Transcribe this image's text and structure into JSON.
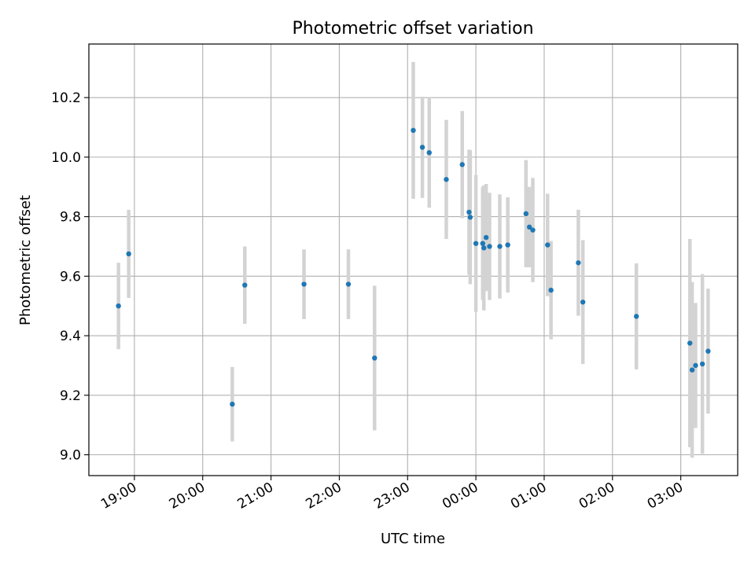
{
  "chart_data": {
    "type": "scatter",
    "title": "Photometric offset variation",
    "xlabel": "UTC time",
    "ylabel": "Photometric offset",
    "x_tick_labels": [
      "19:00",
      "20:00",
      "21:00",
      "22:00",
      "23:00",
      "00:00",
      "01:00",
      "02:00",
      "03:00"
    ],
    "x_tick_times": [
      "19:00",
      "20:00",
      "21:00",
      "22:00",
      "23:00",
      "00:00",
      "01:00",
      "02:00",
      "03:00"
    ],
    "xlim": [
      "18:20",
      "03:50"
    ],
    "y_tick_labels": [
      "9.0",
      "9.2",
      "9.4",
      "9.6",
      "9.8",
      "10.0",
      "10.2"
    ],
    "y_ticks": [
      9.0,
      9.2,
      9.4,
      9.6,
      9.8,
      10.0,
      10.2
    ],
    "ylim": [
      8.93,
      10.38
    ],
    "grid": true,
    "colors": {
      "point": "#1f77b4",
      "errorbar": "#d3d3d3",
      "grid": "#b0b0b0"
    },
    "points": [
      {
        "t": "18:46",
        "y": 9.5,
        "err": 0.145
      },
      {
        "t": "18:55",
        "y": 9.675,
        "err": 0.148
      },
      {
        "t": "20:26",
        "y": 9.17,
        "err": 0.125
      },
      {
        "t": "20:37",
        "y": 9.57,
        "err": 0.13
      },
      {
        "t": "21:29",
        "y": 9.573,
        "err": 0.117
      },
      {
        "t": "22:08",
        "y": 9.573,
        "err": 0.117
      },
      {
        "t": "22:31",
        "y": 9.325,
        "err": 0.243
      },
      {
        "t": "23:05",
        "y": 10.09,
        "err": 0.23
      },
      {
        "t": "23:13",
        "y": 10.033,
        "err": 0.17
      },
      {
        "t": "23:19",
        "y": 10.015,
        "err": 0.185
      },
      {
        "t": "23:34",
        "y": 9.925,
        "err": 0.2
      },
      {
        "t": "23:48",
        "y": 9.975,
        "err": 0.18
      },
      {
        "t": "23:54",
        "y": 9.815,
        "err": 0.21
      },
      {
        "t": "23:55",
        "y": 9.798,
        "err": 0.225
      },
      {
        "t": "24:00",
        "y": 9.71,
        "err": 0.23
      },
      {
        "t": "24:06",
        "y": 9.71,
        "err": 0.19
      },
      {
        "t": "24:07",
        "y": 9.695,
        "err": 0.21
      },
      {
        "t": "24:09",
        "y": 9.73,
        "err": 0.18
      },
      {
        "t": "24:12",
        "y": 9.7,
        "err": 0.18
      },
      {
        "t": "24:21",
        "y": 9.7,
        "err": 0.175
      },
      {
        "t": "24:28",
        "y": 9.705,
        "err": 0.16
      },
      {
        "t": "24:44",
        "y": 9.81,
        "err": 0.18
      },
      {
        "t": "24:47",
        "y": 9.765,
        "err": 0.135
      },
      {
        "t": "24:50",
        "y": 9.755,
        "err": 0.175
      },
      {
        "t": "25:03",
        "y": 9.705,
        "err": 0.172
      },
      {
        "t": "25:06",
        "y": 9.553,
        "err": 0.165
      },
      {
        "t": "25:30",
        "y": 9.645,
        "err": 0.178
      },
      {
        "t": "25:34",
        "y": 9.513,
        "err": 0.208
      },
      {
        "t": "26:21",
        "y": 9.465,
        "err": 0.178
      },
      {
        "t": "27:08",
        "y": 9.375,
        "err": 0.35
      },
      {
        "t": "27:10",
        "y": 9.285,
        "err": 0.295
      },
      {
        "t": "27:13",
        "y": 9.3,
        "err": 0.21
      },
      {
        "t": "27:19",
        "y": 9.305,
        "err": 0.302
      },
      {
        "t": "27:24",
        "y": 9.348,
        "err": 0.21
      }
    ]
  }
}
